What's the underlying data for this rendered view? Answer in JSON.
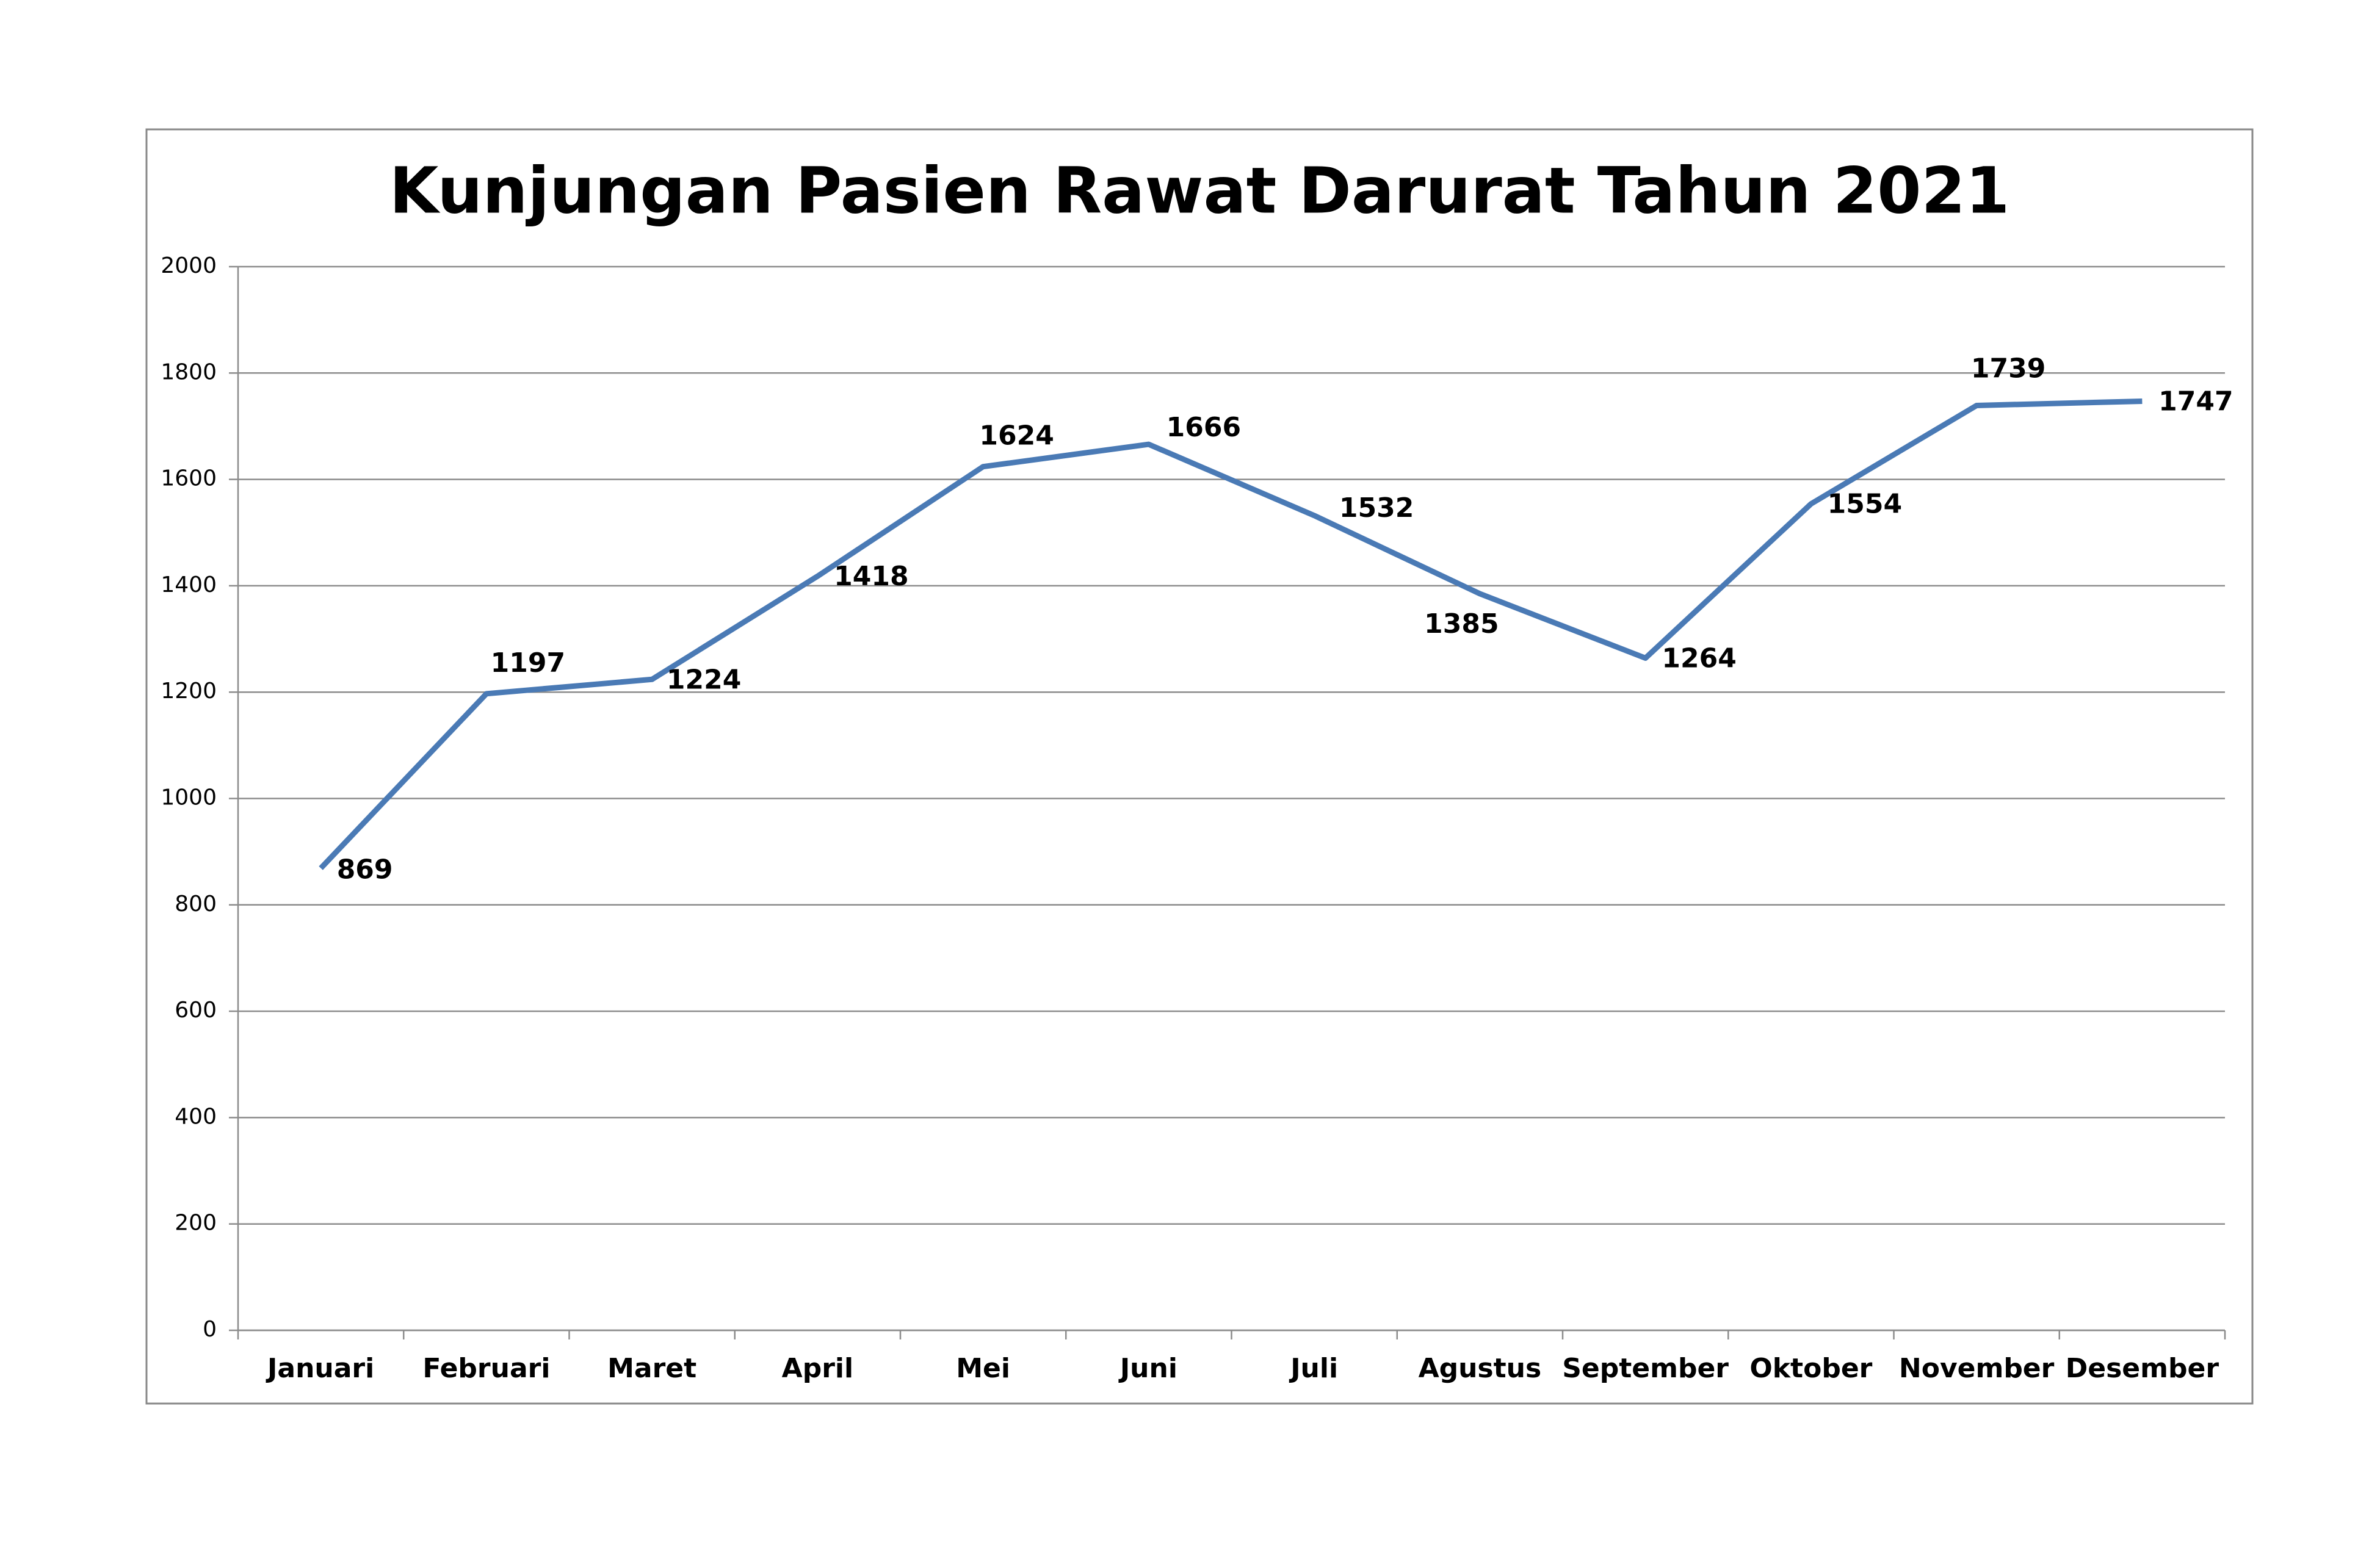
{
  "chart_data": {
    "type": "line",
    "title": "Kunjungan Pasien Rawat Darurat Tahun 2021",
    "categories": [
      "Januari",
      "Februari",
      "Maret",
      "April",
      "Mei",
      "Juni",
      "Juli",
      "Agustus",
      "September",
      "Oktober",
      "November",
      "Desember"
    ],
    "values": [
      869,
      1197,
      1224,
      1418,
      1624,
      1666,
      1532,
      1385,
      1264,
      1554,
      1739,
      1747
    ],
    "color": "#4a7ab5",
    "ylim": [
      0,
      2000
    ],
    "yticks": [
      0,
      200,
      400,
      600,
      800,
      1000,
      1200,
      1400,
      1600,
      1800,
      2000
    ],
    "grid": true
  }
}
